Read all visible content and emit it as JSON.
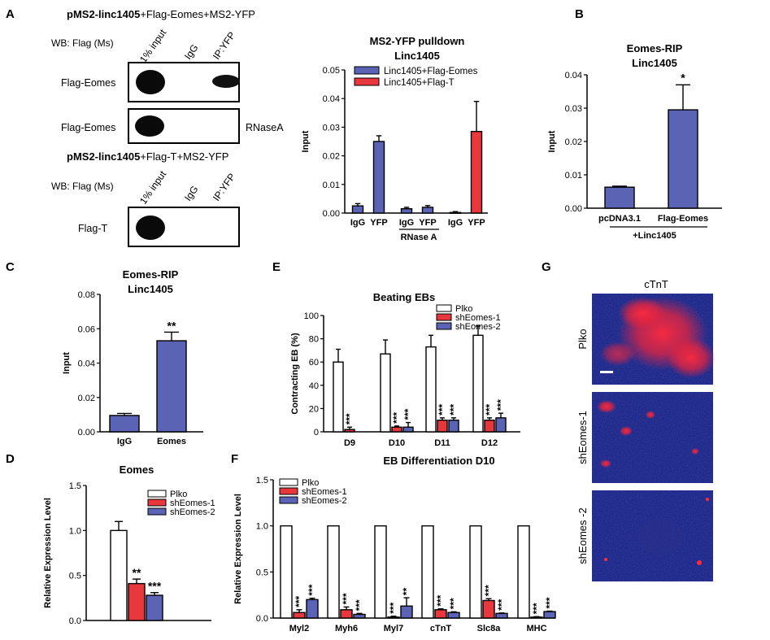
{
  "colors": {
    "blue": "#5b63b5",
    "red": "#e8383d",
    "white": "#ffffff",
    "frame": "#000000",
    "micro_bg": "#1a1f7a",
    "micro_signal": "#ff2a3c"
  },
  "panelA": {
    "letter": "A",
    "top_title_bold": "pMS2-linc1405",
    "top_title_rest": "+Flag-Eomes+MS2-YFP",
    "wb_label": "WB: Flag (Ms)",
    "lanes": [
      "1% input",
      "IgG",
      "IP:YFP"
    ],
    "blot1_label": "Flag-Eomes",
    "blot2_label": "Flag-Eomes",
    "blot2_treatment": "RNaseA",
    "bottom_title_bold": "pMS2-linc1405",
    "bottom_title_rest": "+Flag-T+MS2-YFP",
    "wb_label2": "WB: Flag (Ms)",
    "lanes2": [
      "1% input",
      "IgG",
      "IP:YFP"
    ],
    "blot3_label": "Flag-T"
  },
  "chart_data": [
    {
      "id": "A_chart",
      "type": "bar",
      "title": "MS2-YFP pulldown",
      "subtitle": "Linc1405",
      "ylabel": "Input",
      "ylim": [
        0,
        0.05
      ],
      "yticks": [
        "0.00",
        "0.01",
        "0.02",
        "0.03",
        "0.04",
        "0.05"
      ],
      "categories": [
        "IgG",
        "YFP",
        "IgG",
        "YFP",
        "IgG",
        "YFP"
      ],
      "group_label": "RNase A",
      "series": [
        {
          "name": "Linc1405+Flag-Eomes",
          "color": "#5b63b5",
          "values": [
            0.0025,
            0.025,
            0.0015,
            0.002,
            null,
            null
          ],
          "errors": [
            0.0008,
            0.002,
            0.0005,
            0.0006,
            null,
            null
          ]
        },
        {
          "name": "Linc1405+Flag-T",
          "color": "#e8383d",
          "values": [
            null,
            null,
            null,
            null,
            0.0002,
            0.0285
          ],
          "errors": [
            null,
            null,
            null,
            null,
            0.0003,
            0.0105
          ]
        }
      ],
      "legend": "top-right"
    },
    {
      "id": "B",
      "type": "bar",
      "title": "Eomes-RIP",
      "subtitle": "Linc1405",
      "ylabel": "Input",
      "ylim": [
        0,
        0.04
      ],
      "yticks": [
        "0.00",
        "0.01",
        "0.02",
        "0.03",
        "0.04"
      ],
      "categories": [
        "pcDNA3.1",
        "Flag-Eomes"
      ],
      "group_label": "+Linc1405",
      "values": [
        0.0063,
        0.0295
      ],
      "errors": [
        0.0003,
        0.0075
      ],
      "significance": [
        "",
        "*"
      ]
    },
    {
      "id": "C",
      "type": "bar",
      "title": "Eomes-RIP",
      "subtitle": "Linc1405",
      "ylabel": "Input",
      "ylim": [
        0,
        0.08
      ],
      "yticks": [
        "0.00",
        "0.02",
        "0.04",
        "0.06",
        "0.08"
      ],
      "categories": [
        "IgG",
        "Eomes"
      ],
      "values": [
        0.0095,
        0.053
      ],
      "errors": [
        0.0012,
        0.005
      ],
      "significance": [
        "",
        "**"
      ]
    },
    {
      "id": "E",
      "type": "bar",
      "title": "Beating  EBs",
      "ylabel": "Contracting  EB (%)",
      "ylim": [
        0,
        100
      ],
      "yticks": [
        "0",
        "20",
        "40",
        "60",
        "80",
        "100"
      ],
      "categories": [
        "D9",
        "D10",
        "D11",
        "D12"
      ],
      "series": [
        {
          "name": "Plko",
          "color": "#ffffff",
          "values": [
            60,
            67,
            73,
            83
          ],
          "errors": [
            11,
            12,
            10,
            8
          ]
        },
        {
          "name": "shEomes-1",
          "color": "#e8383d",
          "values": [
            2,
            4,
            10,
            10
          ],
          "errors": [
            2,
            1,
            2,
            2
          ]
        },
        {
          "name": "shEomes-2",
          "color": "#5b63b5",
          "values": [
            null,
            4,
            10,
            12
          ],
          "errors": [
            null,
            4,
            2,
            4
          ]
        }
      ],
      "significance": [
        [
          "",
          "***",
          ""
        ],
        [
          "",
          "***",
          "***"
        ],
        [
          "",
          "***",
          "***"
        ],
        [
          "",
          "***",
          "***"
        ]
      ],
      "legend": "top-right"
    },
    {
      "id": "D",
      "type": "bar",
      "title": "Eomes",
      "ylabel": "Relative Expression Level",
      "ylim": [
        0,
        1.5
      ],
      "yticks": [
        "0.0",
        "0.5",
        "1.0",
        "1.5"
      ],
      "categories": [
        ""
      ],
      "series": [
        {
          "name": "Plko",
          "color": "#ffffff",
          "values": [
            1.0
          ],
          "errors": [
            0.1
          ]
        },
        {
          "name": "shEomes-1",
          "color": "#e8383d",
          "values": [
            0.41
          ],
          "errors": [
            0.05
          ]
        },
        {
          "name": "shEomes-2",
          "color": "#5b63b5",
          "values": [
            0.28
          ],
          "errors": [
            0.03
          ]
        }
      ],
      "significance": [
        [
          "",
          "**",
          "***"
        ]
      ],
      "legend": "top-right"
    },
    {
      "id": "F",
      "type": "bar",
      "title": "EB Differentiation D10",
      "ylabel": "Relative Expression Level",
      "ylim": [
        0,
        1.5
      ],
      "yticks": [
        "0.0",
        "0.5",
        "1.0",
        "1.5"
      ],
      "categories": [
        "Myl2",
        "Myh6",
        "Myl7",
        "cTnT",
        "Slc8a",
        "MHC"
      ],
      "series": [
        {
          "name": "Plko",
          "color": "#ffffff",
          "values": [
            1,
            1,
            1,
            1,
            1,
            1
          ],
          "errors": [
            0,
            0,
            0,
            0,
            0,
            0
          ]
        },
        {
          "name": "shEomes-1",
          "color": "#e8383d",
          "values": [
            0.06,
            0.09,
            0.01,
            0.09,
            0.19,
            0.01
          ],
          "errors": [
            0.03,
            0.03,
            0.01,
            0.01,
            0.02,
            0.005
          ]
        },
        {
          "name": "shEomes-2",
          "color": "#5b63b5",
          "values": [
            0.2,
            0.04,
            0.13,
            0.06,
            0.05,
            0.07
          ],
          "errors": [
            0.015,
            0.01,
            0.09,
            0.008,
            0.005,
            0.005
          ]
        }
      ],
      "significance": [
        [
          "",
          "***",
          "***"
        ],
        [
          "",
          "***",
          "***"
        ],
        [
          "",
          "***",
          "**"
        ],
        [
          "",
          "***",
          "***"
        ],
        [
          "",
          "***",
          "***"
        ],
        [
          "",
          "***",
          "***"
        ]
      ],
      "legend": "top-left"
    }
  ],
  "panel_letters": {
    "B": "B",
    "C": "C",
    "D": "D",
    "E": "E",
    "F": "F",
    "G": "G"
  },
  "panelG": {
    "title": "cTnT",
    "rows": [
      "Plko",
      "shEomes-1",
      "shEomes -2"
    ]
  }
}
